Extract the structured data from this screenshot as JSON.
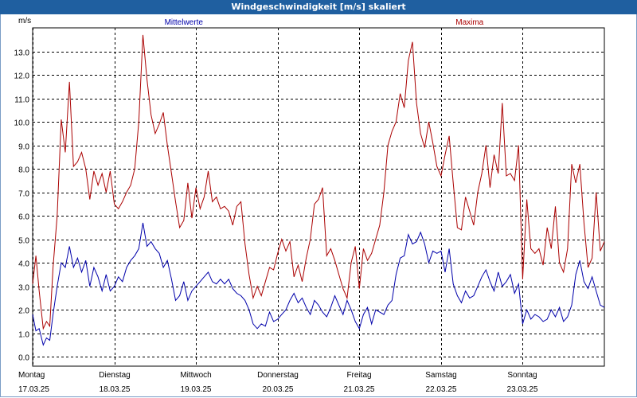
{
  "window": {
    "title": "Windgeschwindigkeit [m/s] skaliert"
  },
  "chart_data": {
    "type": "line",
    "title": "Windgeschwindigkeit [m/s] skaliert",
    "ylabel": "m/s",
    "ylim": [
      -0.4,
      14.0
    ],
    "yticks": [
      0.0,
      1.0,
      2.0,
      3.0,
      4.0,
      5.0,
      6.0,
      7.0,
      8.0,
      9.0,
      10.0,
      11.0,
      12.0,
      13.0
    ],
    "xlim": [
      0,
      7
    ],
    "x_unit": "days from 17.03.25 00:00",
    "days": [
      {
        "day": "Montag",
        "date": "17.03.25"
      },
      {
        "day": "Dienstag",
        "date": "18.03.25"
      },
      {
        "day": "Mittwoch",
        "date": "19.03.25"
      },
      {
        "day": "Donnerstag",
        "date": "20.03.25"
      },
      {
        "day": "Freitag",
        "date": "21.03.25"
      },
      {
        "day": "Samstag",
        "date": "22.03.25"
      },
      {
        "day": "Sonntag",
        "date": "23.03.25"
      }
    ],
    "grid": true,
    "legend": "top",
    "series": [
      {
        "name": "Mittelwerte",
        "color": "#0000aa",
        "points": [
          [
            0.0,
            1.8
          ],
          [
            0.04,
            1.1
          ],
          [
            0.08,
            1.2
          ],
          [
            0.13,
            0.5
          ],
          [
            0.17,
            0.8
          ],
          [
            0.21,
            0.7
          ],
          [
            0.25,
            1.8
          ],
          [
            0.3,
            3.0
          ],
          [
            0.35,
            4.0
          ],
          [
            0.4,
            3.8
          ],
          [
            0.45,
            4.7
          ],
          [
            0.5,
            3.8
          ],
          [
            0.55,
            4.2
          ],
          [
            0.6,
            3.6
          ],
          [
            0.65,
            4.1
          ],
          [
            0.7,
            3.0
          ],
          [
            0.75,
            3.8
          ],
          [
            0.8,
            3.4
          ],
          [
            0.85,
            2.8
          ],
          [
            0.9,
            3.5
          ],
          [
            0.95,
            2.8
          ],
          [
            1.0,
            3.0
          ],
          [
            1.05,
            3.4
          ],
          [
            1.1,
            3.2
          ],
          [
            1.15,
            3.8
          ],
          [
            1.2,
            4.1
          ],
          [
            1.25,
            4.3
          ],
          [
            1.3,
            4.6
          ],
          [
            1.35,
            5.7
          ],
          [
            1.4,
            4.7
          ],
          [
            1.45,
            4.9
          ],
          [
            1.5,
            4.6
          ],
          [
            1.55,
            4.4
          ],
          [
            1.6,
            3.8
          ],
          [
            1.65,
            4.1
          ],
          [
            1.7,
            3.3
          ],
          [
            1.75,
            2.4
          ],
          [
            1.8,
            2.6
          ],
          [
            1.85,
            3.2
          ],
          [
            1.9,
            2.4
          ],
          [
            1.95,
            2.8
          ],
          [
            2.0,
            3.0
          ],
          [
            2.05,
            3.2
          ],
          [
            2.1,
            3.4
          ],
          [
            2.15,
            3.6
          ],
          [
            2.2,
            3.2
          ],
          [
            2.25,
            3.1
          ],
          [
            2.3,
            3.3
          ],
          [
            2.35,
            3.1
          ],
          [
            2.4,
            3.3
          ],
          [
            2.45,
            2.9
          ],
          [
            2.5,
            2.7
          ],
          [
            2.55,
            2.6
          ],
          [
            2.6,
            2.4
          ],
          [
            2.65,
            2.0
          ],
          [
            2.7,
            1.4
          ],
          [
            2.75,
            1.2
          ],
          [
            2.8,
            1.4
          ],
          [
            2.85,
            1.3
          ],
          [
            2.9,
            1.9
          ],
          [
            2.95,
            1.5
          ],
          [
            3.0,
            1.6
          ],
          [
            3.05,
            1.8
          ],
          [
            3.1,
            2.0
          ],
          [
            3.15,
            2.4
          ],
          [
            3.2,
            2.7
          ],
          [
            3.25,
            2.3
          ],
          [
            3.3,
            2.5
          ],
          [
            3.35,
            2.1
          ],
          [
            3.4,
            1.8
          ],
          [
            3.45,
            2.4
          ],
          [
            3.5,
            2.2
          ],
          [
            3.55,
            1.9
          ],
          [
            3.6,
            1.7
          ],
          [
            3.65,
            2.1
          ],
          [
            3.7,
            2.6
          ],
          [
            3.75,
            2.2
          ],
          [
            3.8,
            1.8
          ],
          [
            3.85,
            2.4
          ],
          [
            3.9,
            2.0
          ],
          [
            3.95,
            1.5
          ],
          [
            4.0,
            1.2
          ],
          [
            4.05,
            1.8
          ],
          [
            4.1,
            2.1
          ],
          [
            4.15,
            1.4
          ],
          [
            4.2,
            2.0
          ],
          [
            4.25,
            1.9
          ],
          [
            4.3,
            1.8
          ],
          [
            4.35,
            2.2
          ],
          [
            4.4,
            2.4
          ],
          [
            4.45,
            3.5
          ],
          [
            4.5,
            4.2
          ],
          [
            4.55,
            4.3
          ],
          [
            4.6,
            5.2
          ],
          [
            4.65,
            4.8
          ],
          [
            4.7,
            4.9
          ],
          [
            4.75,
            5.3
          ],
          [
            4.8,
            4.8
          ],
          [
            4.85,
            4.0
          ],
          [
            4.9,
            4.5
          ],
          [
            4.95,
            4.4
          ],
          [
            5.0,
            4.5
          ],
          [
            5.05,
            3.6
          ],
          [
            5.1,
            4.6
          ],
          [
            5.15,
            3.1
          ],
          [
            5.2,
            2.6
          ],
          [
            5.25,
            2.3
          ],
          [
            5.3,
            2.8
          ],
          [
            5.35,
            2.5
          ],
          [
            5.4,
            2.6
          ],
          [
            5.45,
            3.0
          ],
          [
            5.5,
            3.4
          ],
          [
            5.55,
            3.7
          ],
          [
            5.6,
            3.2
          ],
          [
            5.65,
            2.8
          ],
          [
            5.7,
            3.6
          ],
          [
            5.75,
            3.0
          ],
          [
            5.8,
            3.2
          ],
          [
            5.85,
            3.5
          ],
          [
            5.9,
            2.7
          ],
          [
            5.95,
            3.1
          ],
          [
            6.0,
            1.4
          ],
          [
            6.05,
            2.0
          ],
          [
            6.1,
            1.6
          ],
          [
            6.15,
            1.8
          ],
          [
            6.2,
            1.7
          ],
          [
            6.25,
            1.5
          ],
          [
            6.3,
            1.6
          ],
          [
            6.35,
            2.0
          ],
          [
            6.4,
            1.7
          ],
          [
            6.45,
            2.1
          ],
          [
            6.5,
            1.5
          ],
          [
            6.55,
            1.7
          ],
          [
            6.6,
            2.2
          ],
          [
            6.65,
            3.5
          ],
          [
            6.7,
            4.1
          ],
          [
            6.75,
            3.2
          ],
          [
            6.8,
            2.9
          ],
          [
            6.85,
            3.4
          ],
          [
            6.9,
            2.8
          ],
          [
            6.95,
            2.2
          ],
          [
            7.0,
            2.1
          ]
        ]
      },
      {
        "name": "Maxima",
        "color": "#aa0000",
        "points": [
          [
            0.0,
            3.1
          ],
          [
            0.04,
            4.3
          ],
          [
            0.08,
            2.8
          ],
          [
            0.13,
            1.2
          ],
          [
            0.17,
            1.5
          ],
          [
            0.21,
            1.3
          ],
          [
            0.25,
            3.8
          ],
          [
            0.3,
            6.0
          ],
          [
            0.35,
            10.1
          ],
          [
            0.4,
            8.7
          ],
          [
            0.45,
            11.7
          ],
          [
            0.5,
            8.1
          ],
          [
            0.55,
            8.3
          ],
          [
            0.6,
            8.7
          ],
          [
            0.65,
            8.0
          ],
          [
            0.7,
            6.7
          ],
          [
            0.75,
            7.9
          ],
          [
            0.8,
            7.3
          ],
          [
            0.85,
            7.8
          ],
          [
            0.9,
            7.0
          ],
          [
            0.95,
            7.9
          ],
          [
            1.0,
            6.5
          ],
          [
            1.05,
            6.3
          ],
          [
            1.1,
            6.6
          ],
          [
            1.15,
            7.0
          ],
          [
            1.2,
            7.3
          ],
          [
            1.25,
            8.0
          ],
          [
            1.3,
            10.0
          ],
          [
            1.35,
            13.7
          ],
          [
            1.4,
            11.8
          ],
          [
            1.45,
            10.3
          ],
          [
            1.5,
            9.5
          ],
          [
            1.55,
            9.9
          ],
          [
            1.6,
            10.4
          ],
          [
            1.65,
            9.0
          ],
          [
            1.7,
            7.8
          ],
          [
            1.75,
            6.6
          ],
          [
            1.8,
            5.5
          ],
          [
            1.85,
            5.8
          ],
          [
            1.9,
            7.4
          ],
          [
            1.95,
            5.9
          ],
          [
            2.0,
            7.2
          ],
          [
            2.05,
            6.3
          ],
          [
            2.1,
            6.8
          ],
          [
            2.15,
            7.9
          ],
          [
            2.2,
            6.6
          ],
          [
            2.25,
            6.8
          ],
          [
            2.3,
            6.3
          ],
          [
            2.35,
            6.4
          ],
          [
            2.4,
            6.2
          ],
          [
            2.45,
            5.6
          ],
          [
            2.5,
            6.4
          ],
          [
            2.55,
            6.6
          ],
          [
            2.6,
            4.8
          ],
          [
            2.65,
            3.5
          ],
          [
            2.7,
            2.5
          ],
          [
            2.75,
            3.0
          ],
          [
            2.8,
            2.6
          ],
          [
            2.85,
            3.2
          ],
          [
            2.9,
            3.8
          ],
          [
            2.95,
            3.7
          ],
          [
            3.0,
            4.4
          ],
          [
            3.05,
            5.0
          ],
          [
            3.1,
            4.5
          ],
          [
            3.15,
            4.9
          ],
          [
            3.2,
            3.4
          ],
          [
            3.25,
            3.9
          ],
          [
            3.3,
            3.2
          ],
          [
            3.35,
            4.2
          ],
          [
            3.4,
            5.0
          ],
          [
            3.45,
            6.5
          ],
          [
            3.5,
            6.7
          ],
          [
            3.55,
            7.2
          ],
          [
            3.6,
            4.3
          ],
          [
            3.65,
            4.6
          ],
          [
            3.7,
            4.1
          ],
          [
            3.75,
            3.5
          ],
          [
            3.8,
            2.9
          ],
          [
            3.85,
            2.5
          ],
          [
            3.9,
            4.0
          ],
          [
            3.95,
            4.7
          ],
          [
            4.0,
            2.9
          ],
          [
            4.05,
            4.6
          ],
          [
            4.1,
            4.1
          ],
          [
            4.15,
            4.4
          ],
          [
            4.2,
            5.0
          ],
          [
            4.25,
            5.6
          ],
          [
            4.3,
            7.0
          ],
          [
            4.35,
            9.0
          ],
          [
            4.4,
            9.6
          ],
          [
            4.45,
            10.0
          ],
          [
            4.5,
            11.2
          ],
          [
            4.55,
            10.6
          ],
          [
            4.6,
            12.6
          ],
          [
            4.65,
            13.4
          ],
          [
            4.7,
            10.8
          ],
          [
            4.75,
            9.5
          ],
          [
            4.8,
            8.9
          ],
          [
            4.85,
            10.0
          ],
          [
            4.9,
            9.1
          ],
          [
            4.95,
            8.1
          ],
          [
            5.0,
            7.7
          ],
          [
            5.05,
            8.6
          ],
          [
            5.1,
            9.4
          ],
          [
            5.15,
            7.4
          ],
          [
            5.2,
            5.5
          ],
          [
            5.25,
            5.4
          ],
          [
            5.3,
            6.8
          ],
          [
            5.35,
            6.2
          ],
          [
            5.4,
            5.6
          ],
          [
            5.45,
            7.0
          ],
          [
            5.5,
            7.8
          ],
          [
            5.55,
            9.0
          ],
          [
            5.6,
            7.2
          ],
          [
            5.65,
            8.6
          ],
          [
            5.7,
            7.8
          ],
          [
            5.75,
            10.8
          ],
          [
            5.8,
            7.7
          ],
          [
            5.85,
            7.8
          ],
          [
            5.9,
            7.5
          ],
          [
            5.95,
            9.0
          ],
          [
            6.0,
            3.3
          ],
          [
            6.05,
            6.7
          ],
          [
            6.1,
            4.6
          ],
          [
            6.15,
            4.4
          ],
          [
            6.2,
            4.6
          ],
          [
            6.25,
            3.9
          ],
          [
            6.3,
            5.5
          ],
          [
            6.35,
            4.6
          ],
          [
            6.4,
            6.4
          ],
          [
            6.45,
            4.0
          ],
          [
            6.5,
            3.6
          ],
          [
            6.55,
            4.6
          ],
          [
            6.6,
            8.2
          ],
          [
            6.65,
            7.4
          ],
          [
            6.7,
            8.2
          ],
          [
            6.75,
            5.7
          ],
          [
            6.8,
            3.8
          ],
          [
            6.85,
            4.2
          ],
          [
            6.9,
            7.0
          ],
          [
            6.95,
            4.5
          ],
          [
            7.0,
            4.9
          ]
        ]
      }
    ]
  }
}
